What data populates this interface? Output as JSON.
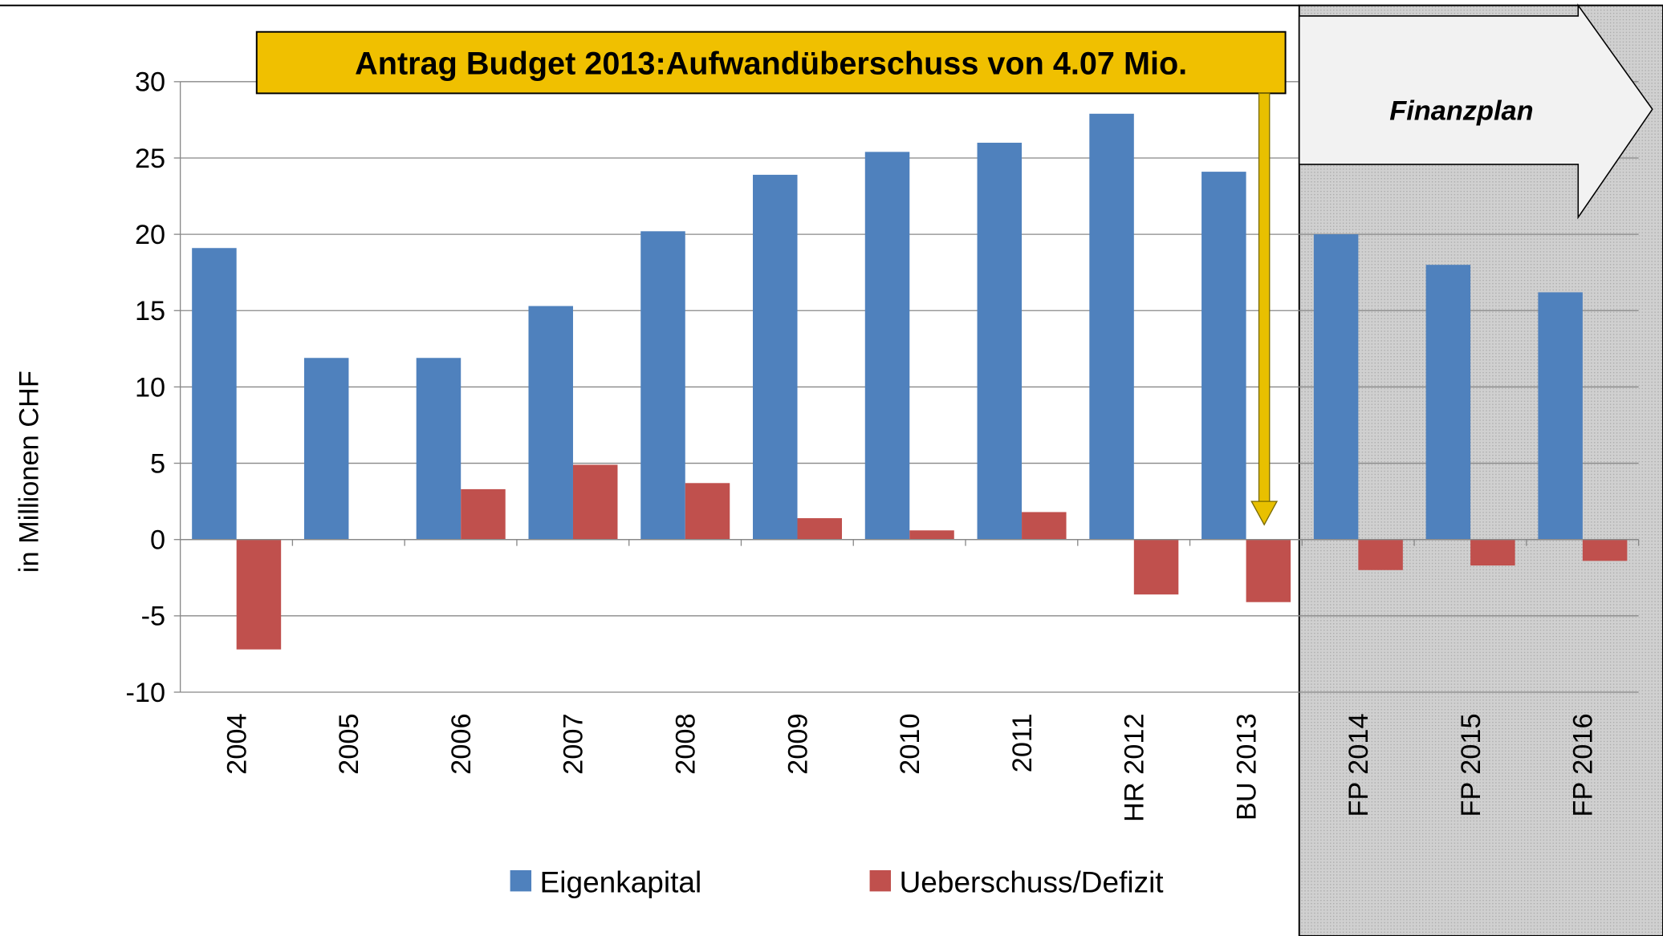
{
  "chart_data": {
    "type": "bar",
    "annotation": "Antrag Budget 2013:Aufwandüberschuss von 4.07 Mio.",
    "region_label": "Finanzplan",
    "y_label": "in Millionen CHF",
    "categories": [
      "2004",
      "2005",
      "2006",
      "2007",
      "2008",
      "2009",
      "2010",
      "2011",
      "HR 2012",
      "BU 2013",
      "FP 2014",
      "FP 2015",
      "FP 2016"
    ],
    "series": [
      {
        "name": "Eigenkapital",
        "color": "#4f81bd",
        "values": [
          19.1,
          11.9,
          11.9,
          15.3,
          20.2,
          23.9,
          25.4,
          26.0,
          27.9,
          24.1,
          20.0,
          18.0,
          16.2
        ]
      },
      {
        "name": "Ueberschuss/Defizit",
        "color": "#c0504d",
        "values": [
          -7.2,
          null,
          3.3,
          4.9,
          3.7,
          1.4,
          0.6,
          1.8,
          -3.6,
          -4.1,
          -2.0,
          -1.7,
          -1.4
        ]
      }
    ],
    "ylim": [
      -10,
      30
    ],
    "yticks": [
      -10,
      -5,
      0,
      5,
      10,
      15,
      20,
      25,
      30
    ],
    "grid": true,
    "legend": "bottom"
  }
}
